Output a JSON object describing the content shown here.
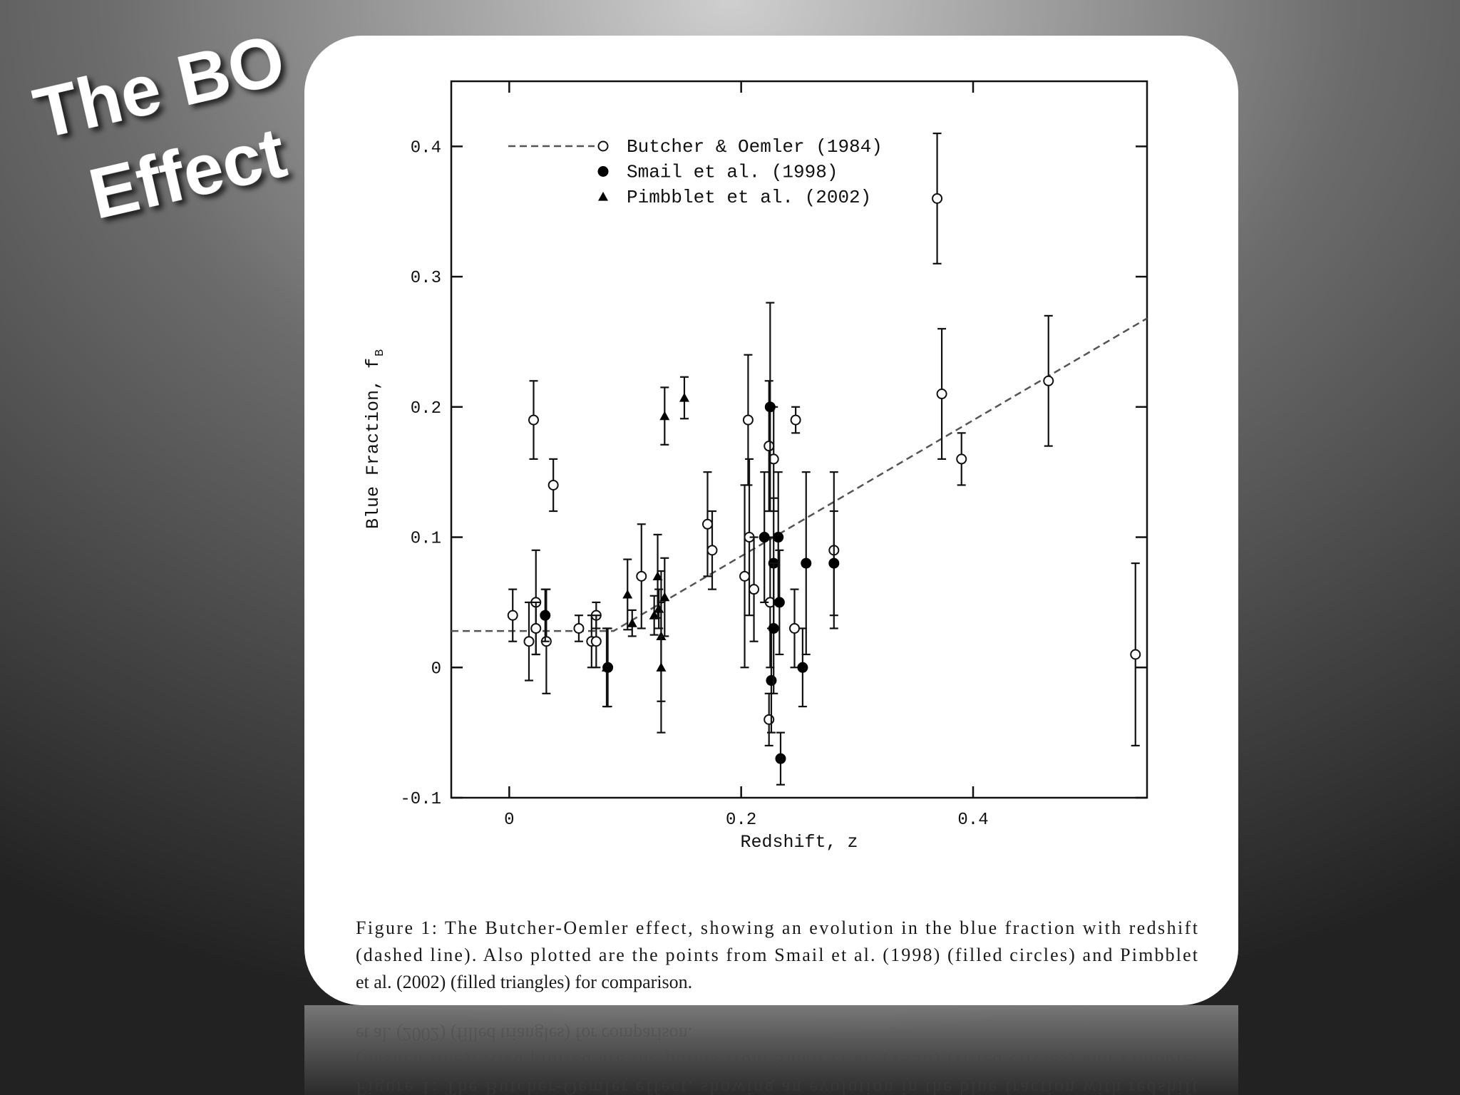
{
  "slide": {
    "title": [
      "The BO",
      "Effect"
    ]
  },
  "chart_data": {
    "type": "scatter",
    "x_label": "Redshift, z",
    "y_label": "Blue Fraction, f",
    "y_label_subscript": "B",
    "xlim": [
      -0.05,
      0.55
    ],
    "ylim": [
      -0.1,
      0.45
    ],
    "xticks": [
      0,
      0.2,
      0.4
    ],
    "yticks": [
      -0.1,
      0,
      0.1,
      0.2,
      0.3,
      0.4
    ],
    "legend": "upper left",
    "series": [
      {
        "name": "Butcher & Oemler (1984)",
        "marker": "open-circle",
        "color": "#111111",
        "x": [
          0.003,
          0.021,
          0.038,
          0.017,
          0.023,
          0.023,
          0.032,
          0.06,
          0.071,
          0.075,
          0.075,
          0.114,
          0.171,
          0.175,
          0.206,
          0.203,
          0.207,
          0.211,
          0.224,
          0.225,
          0.228,
          0.224,
          0.247,
          0.246,
          0.28,
          0.369,
          0.373,
          0.39,
          0.465,
          0.54
        ],
        "values": [
          0.04,
          0.19,
          0.14,
          0.02,
          0.05,
          0.03,
          0.02,
          0.03,
          0.02,
          0.04,
          0.02,
          0.07,
          0.11,
          0.09,
          0.19,
          0.07,
          0.1,
          0.06,
          0.17,
          0.05,
          0.16,
          -0.04,
          0.19,
          0.03,
          0.09,
          0.36,
          0.21,
          0.16,
          0.22,
          0.01
        ],
        "errors": [
          0.02,
          0.03,
          0.02,
          0.03,
          0.04,
          0.02,
          0.04,
          0.01,
          0.02,
          0.01,
          0.02,
          0.04,
          0.04,
          0.03,
          0.05,
          0.07,
          0.06,
          0.04,
          0.05,
          0.05,
          0.04,
          0.02,
          0.01,
          0.03,
          0.06,
          0.05,
          0.05,
          0.02,
          0.05,
          0.07
        ],
        "line_x": [
          -0.05,
          0.09,
          0.55
        ],
        "line_values": [
          0.028,
          0.028,
          0.268
        ],
        "line_color": "#555555"
      },
      {
        "name": "Smail et al. (1998)",
        "marker": "circle",
        "color": "#000000",
        "x": [
          0.031,
          0.085,
          0.225,
          0.22,
          0.226,
          0.228,
          0.228,
          0.232,
          0.233,
          0.234,
          0.253,
          0.256,
          0.28
        ],
        "values": [
          0.04,
          0,
          0.2,
          0.1,
          -0.01,
          0.08,
          0.03,
          0.1,
          0.05,
          -0.07,
          0,
          0.08,
          0.08
        ],
        "errors": [
          0.02,
          0.03,
          0.08,
          0.05,
          0.04,
          0.05,
          0.05,
          0.05,
          0.04,
          0.02,
          0.03,
          0.07,
          0.04
        ]
      },
      {
        "name": "Pimbblet et al. (2002)",
        "marker": "triangle",
        "color": "#000000",
        "x": [
          0.084,
          0.102,
          0.106,
          0.125,
          0.128,
          0.129,
          0.131,
          0.131,
          0.134,
          0.134,
          0.151
        ],
        "values": [
          0,
          0.056,
          0.034,
          0.04,
          0.07,
          0.045,
          0.024,
          0,
          0.054,
          0.193,
          0.207
        ],
        "errors": [
          0.03,
          0.027,
          0.01,
          0.015,
          0.032,
          0.015,
          0.05,
          0.05,
          0.03,
          0.022,
          0.016
        ]
      }
    ]
  },
  "caption": [
    "Figure 1: The Butcher-Oemler effect, showing an evolution in the blue fraction with redshift",
    "(dashed line). Also plotted are the points from Smail et al. (1998) (filled circles) and Pimbblet",
    "et al. (2002) (filled triangles) for comparison."
  ]
}
